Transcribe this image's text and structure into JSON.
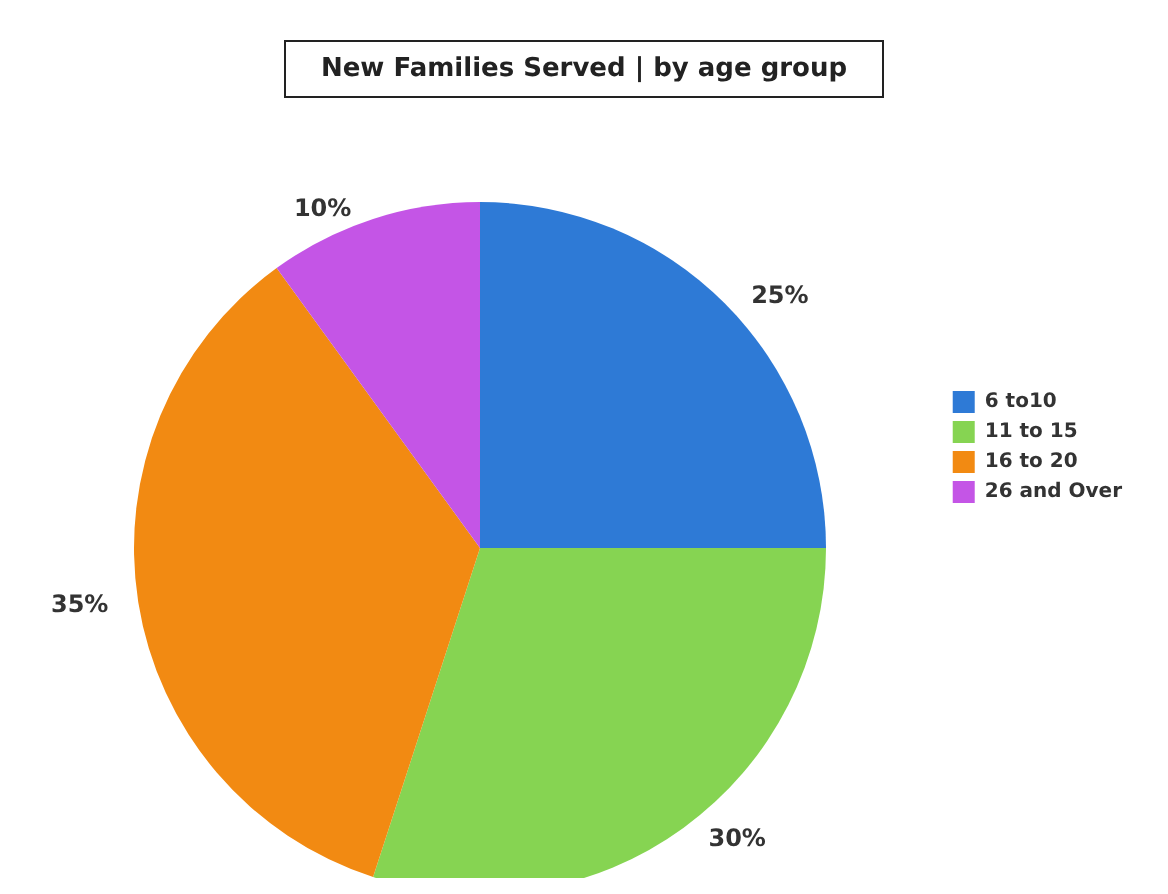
{
  "chart_data": {
    "type": "pie",
    "title": "New Families Served | by age group",
    "categories": [
      "6 to10",
      "11 to 15",
      "16 to 20",
      "26 and Over"
    ],
    "values": [
      25,
      30,
      35,
      10
    ],
    "colors": [
      "#2e7ad6",
      "#86d452",
      "#f28a12",
      "#c455e6"
    ],
    "value_labels": [
      "25%",
      "30%",
      "35%",
      "10%"
    ],
    "legend": "right"
  }
}
